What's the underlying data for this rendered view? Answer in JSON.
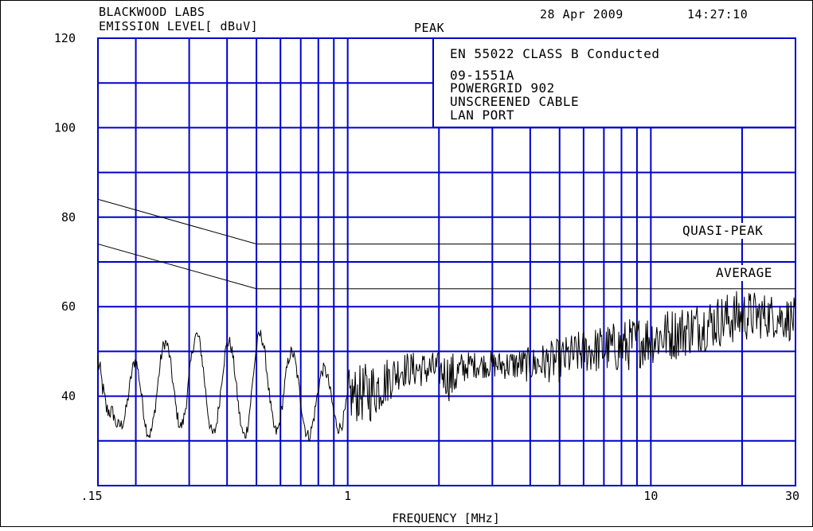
{
  "header": {
    "lab": "BLACKWOOD LABS",
    "ylabel": "EMISSION LEVEL[ dBuV]",
    "mode": "PEAK",
    "date": "28 Apr 2009",
    "time": "14:27:10"
  },
  "info_box": {
    "standard": "EN 55022 CLASS B Conducted",
    "lines": [
      "09-1551A",
      "POWERGRID 902",
      "UNSCREENED CABLE",
      "LAN PORT"
    ]
  },
  "colors": {
    "grid": "#0000cc",
    "trace": "#000000",
    "limits": "#000000",
    "background": "#ffffff"
  },
  "chart_data": {
    "type": "line",
    "xlabel": "FREQUENCY [MHz]",
    "ylabel": "EMISSION LEVEL[ dBuV]",
    "x_scale": "log",
    "xlim": [
      0.15,
      30
    ],
    "ylim": [
      20,
      120
    ],
    "grid": true,
    "x_ticks": [
      0.15,
      1,
      10,
      30
    ],
    "x_tick_labels": [
      ".15",
      "1",
      "10",
      "30"
    ],
    "y_ticks": [
      40,
      60,
      80,
      100,
      120
    ],
    "y_tick_labels": [
      "40",
      "60",
      "80",
      "100",
      "120"
    ],
    "limit_lines": [
      {
        "name": "QUASI-PEAK",
        "points": [
          [
            0.15,
            84
          ],
          [
            0.5,
            74
          ],
          [
            30,
            74
          ]
        ]
      },
      {
        "name": "AVERAGE",
        "points": [
          [
            0.15,
            74
          ],
          [
            0.5,
            64
          ],
          [
            30,
            64
          ]
        ]
      }
    ],
    "peak_trace_envelope": {
      "frequencies_mhz": [
        0.15,
        0.16,
        0.18,
        0.2,
        0.25,
        0.3,
        0.4,
        0.5,
        0.6,
        0.7,
        0.8,
        1.0,
        1.2,
        1.5,
        2.0,
        2.2,
        2.5,
        3.0,
        4.0,
        5.0,
        6.0,
        8.0,
        10,
        12,
        15,
        20,
        25,
        30
      ],
      "typical_dbuv": [
        48,
        37,
        35,
        40,
        42,
        44,
        41,
        43,
        42,
        40,
        38,
        40,
        41,
        46,
        46,
        44,
        47,
        47,
        47,
        48,
        50,
        51,
        53,
        54,
        56,
        58,
        58,
        57
      ],
      "variation_db": [
        3,
        2,
        2,
        9,
        10,
        10,
        11,
        11,
        10,
        8,
        8,
        6,
        7,
        4,
        4,
        6,
        3,
        3,
        4,
        5,
        5,
        6,
        6,
        6,
        6,
        6,
        5,
        5
      ]
    }
  }
}
